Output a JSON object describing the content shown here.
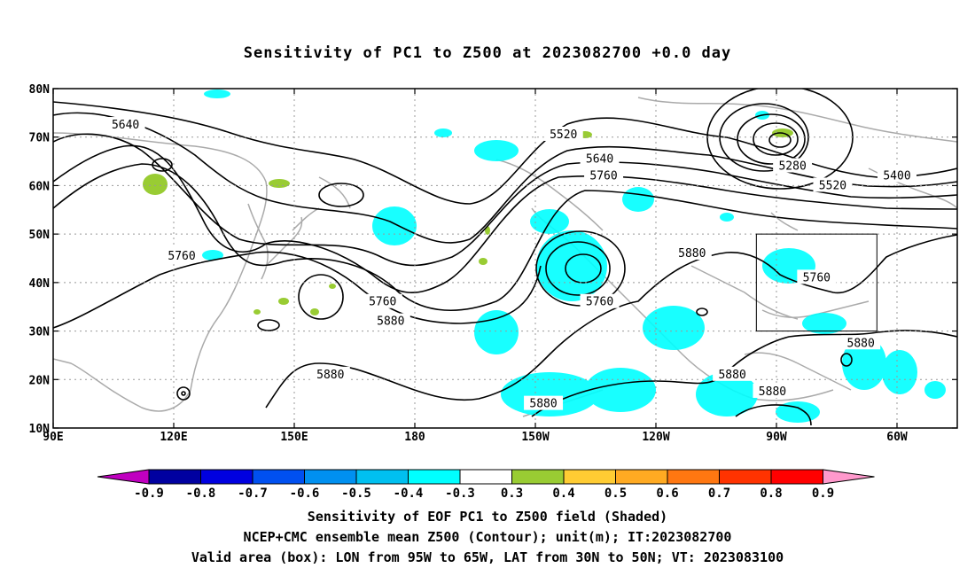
{
  "title": "Sensitivity of PC1 to Z500 at 2023082700 +0.0 day",
  "lat_ticks": [
    "80N",
    "70N",
    "60N",
    "50N",
    "40N",
    "30N",
    "20N",
    "10N"
  ],
  "lon_ticks": [
    "90E",
    "120E",
    "150E",
    "180",
    "150W",
    "120W",
    "90W",
    "60W"
  ],
  "contour_labels": [
    {
      "text": "5640",
      "lon": 108,
      "lat": 72.5
    },
    {
      "text": "5520",
      "lon": -143,
      "lat": 70.5
    },
    {
      "text": "5640",
      "lon": -134,
      "lat": 65.5
    },
    {
      "text": "5760",
      "lon": -133,
      "lat": 62
    },
    {
      "text": "5280",
      "lon": -86,
      "lat": 64
    },
    {
      "text": "5400",
      "lon": -60,
      "lat": 62
    },
    {
      "text": "5520",
      "lon": -76,
      "lat": 60
    },
    {
      "text": "5880",
      "lon": -111,
      "lat": 46
    },
    {
      "text": "5760",
      "lon": 122,
      "lat": 45.5
    },
    {
      "text": "5760",
      "lon": -80,
      "lat": 41
    },
    {
      "text": "5760",
      "lon": 172,
      "lat": 36
    },
    {
      "text": "5760",
      "lon": -134,
      "lat": 36
    },
    {
      "text": "5880",
      "lon": 174,
      "lat": 32
    },
    {
      "text": "5880",
      "lon": -69,
      "lat": 27.5
    },
    {
      "text": "5880",
      "lon": 159,
      "lat": 21
    },
    {
      "text": "5880",
      "lon": -101,
      "lat": 21
    },
    {
      "text": "5880",
      "lon": -91,
      "lat": 17.5
    },
    {
      "text": "5880",
      "lon": -148,
      "lat": 15
    }
  ],
  "valid_box": {
    "lon_west": -95,
    "lon_east": -65,
    "lat_south": 30,
    "lat_north": 50
  },
  "colorbar": {
    "labels": [
      "-0.9",
      "-0.8",
      "-0.7",
      "-0.6",
      "-0.5",
      "-0.4",
      "-0.3",
      "0.3",
      "0.4",
      "0.5",
      "0.6",
      "0.7",
      "0.8",
      "0.9"
    ],
    "colors": [
      "#c000c0",
      "#0000a0",
      "#0000e0",
      "#0050f0",
      "#0090f0",
      "#00c0f0",
      "#00ffff",
      "#ffffff",
      "#99cc33",
      "#ffcc33",
      "#ffaa22",
      "#ff7711",
      "#ff3300",
      "#ff0000",
      "#ff99cc"
    ]
  },
  "captions": {
    "line1": "Sensitivity of EOF PC1 to Z500 field (Shaded)",
    "line2": "NCEP+CMC ensemble mean Z500 (Contour); unit(m); IT:2023082700",
    "line3": "Valid area (box): LON from 95W to 65W, LAT from 30N to 50N; VT: 2023083100"
  }
}
